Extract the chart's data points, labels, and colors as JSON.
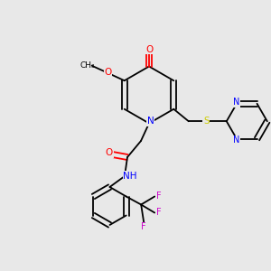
{
  "bg_color": "#e8e8e8",
  "bond_color": "#000000",
  "atom_colors": {
    "O": "#ff0000",
    "N": "#0000ff",
    "S": "#cccc00",
    "F": "#cc00cc",
    "C": "#000000",
    "H": "#000000"
  },
  "font_size": 7.5,
  "bond_width": 1.3
}
